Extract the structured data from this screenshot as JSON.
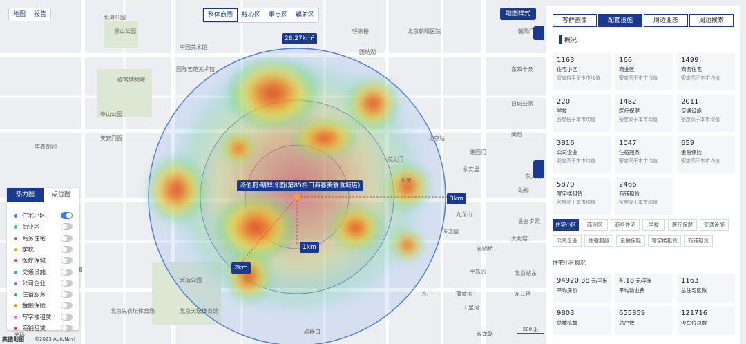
{
  "toolbar_left": [
    "地图",
    "报告"
  ],
  "toolbar_center": [
    "整体商圈",
    "核心区",
    "重点区",
    "辐射区"
  ],
  "map_style": "地图样式",
  "area_label": "28.27km²",
  "poi_label": "汤伯府·朝鲜冷面(第85档口海豚美餐食城店)",
  "ring_labels": [
    "1km",
    "2km",
    "3km"
  ],
  "map_labels": [
    "北海公园",
    "景山公园",
    "中国美术馆",
    "国际艺苑美术馆",
    "故宫博物院",
    "中山公园",
    "天安门西",
    "华表胡同",
    "北京站",
    "东单",
    "建国门",
    "朝阳门",
    "东四十条",
    "日坛公园",
    "永安里",
    "崇文门",
    "天坛公园",
    "北京天坛体育馆",
    "北京先农坛体育场",
    "北纬路",
    "九龙山",
    "珠江国",
    "光明桥",
    "双龙路",
    "东三环",
    "劲松",
    "北京朝阳医院",
    "国贸",
    "金台夕照",
    "呼家楼",
    "团结湖",
    "东大桥",
    "北京站东",
    "平乐园",
    "大北窑",
    "磁器口",
    "天桥",
    "蒲黄榆",
    "方庄",
    "十里河"
  ],
  "map_footer": {
    "logo": "高德地图",
    "copyright": "©2023 AutoNavi",
    "scale": "500 米"
  },
  "left_panel": {
    "tabs": [
      "热力图",
      "点位图"
    ],
    "layers": [
      {
        "name": "住宅小区",
        "color": "#3d7cf0",
        "on": true
      },
      {
        "name": "商业区",
        "color": "#4cc38a",
        "on": false
      },
      {
        "name": "商务住宅",
        "color": "#6b7a99",
        "on": false
      },
      {
        "name": "学校",
        "color": "#f5a623",
        "on": false
      },
      {
        "name": "医疗保健",
        "color": "#e5534b",
        "on": false
      },
      {
        "name": "交通设施",
        "color": "#3aa0e8",
        "on": false
      },
      {
        "name": "公司企业",
        "color": "#8c6cd9",
        "on": false
      },
      {
        "name": "住宿服务",
        "color": "#2bb3a3",
        "on": false
      },
      {
        "name": "金融保险",
        "color": "#c9a227",
        "on": false
      },
      {
        "name": "写字楼租赁",
        "color": "#e86fb0",
        "on": false
      },
      {
        "name": "商铺租赁",
        "color": "#d93a6a",
        "on": false
      }
    ]
  },
  "right_panel": {
    "tabs": [
      "客群画像",
      "配套设施",
      "周边业态",
      "周边搜索"
    ],
    "active_tab": 1,
    "section": "概况",
    "cards": [
      {
        "value": 1163,
        "name": "住宅小区",
        "desc": "密度持平于本市均值"
      },
      {
        "value": 166,
        "name": "商业区",
        "desc": "密度高于本市均值"
      },
      {
        "value": 1499,
        "name": "商务住宅",
        "desc": "密度高于本市均值"
      },
      {
        "value": 220,
        "name": "学校",
        "desc": "密度低于本市均值"
      },
      {
        "value": 1482,
        "name": "医疗保健",
        "desc": "密度高于本市均值"
      },
      {
        "value": 2011,
        "name": "交通设施",
        "desc": "密度高于本市均值"
      },
      {
        "value": 3816,
        "name": "公司企业",
        "desc": "密度高于本市均值"
      },
      {
        "value": 1047,
        "name": "住宿服务",
        "desc": "密度高于本市均值"
      },
      {
        "value": 659,
        "name": "金融保险",
        "desc": "密度高于本市均值"
      },
      {
        "value": 5870,
        "name": "写字楼租赁",
        "desc": "密度高于本市均值"
      },
      {
        "value": 2466,
        "name": "商铺租赁",
        "desc": "密度高于本市均值"
      }
    ],
    "tags": [
      "住宅小区",
      "商业区",
      "商务住宅",
      "学校",
      "医疗保健",
      "交通设施",
      "公司企业",
      "住宿服务",
      "金融保险",
      "写字楼租赁",
      "商铺租赁"
    ],
    "active_tag": 0,
    "sub_section": "住宅小区概况",
    "stats": [
      {
        "value": 94920.38,
        "unit": "元/平米",
        "label": "平均房价"
      },
      {
        "value": 4.18,
        "unit": "元/平米",
        "label": "平均物业费"
      },
      {
        "value": 1163,
        "label": "总住宅区数"
      },
      {
        "value": 9803,
        "label": "总楼栋数"
      },
      {
        "value": 655859,
        "label": "总户数"
      },
      {
        "value": 121716,
        "label": "停车位总数"
      }
    ]
  }
}
